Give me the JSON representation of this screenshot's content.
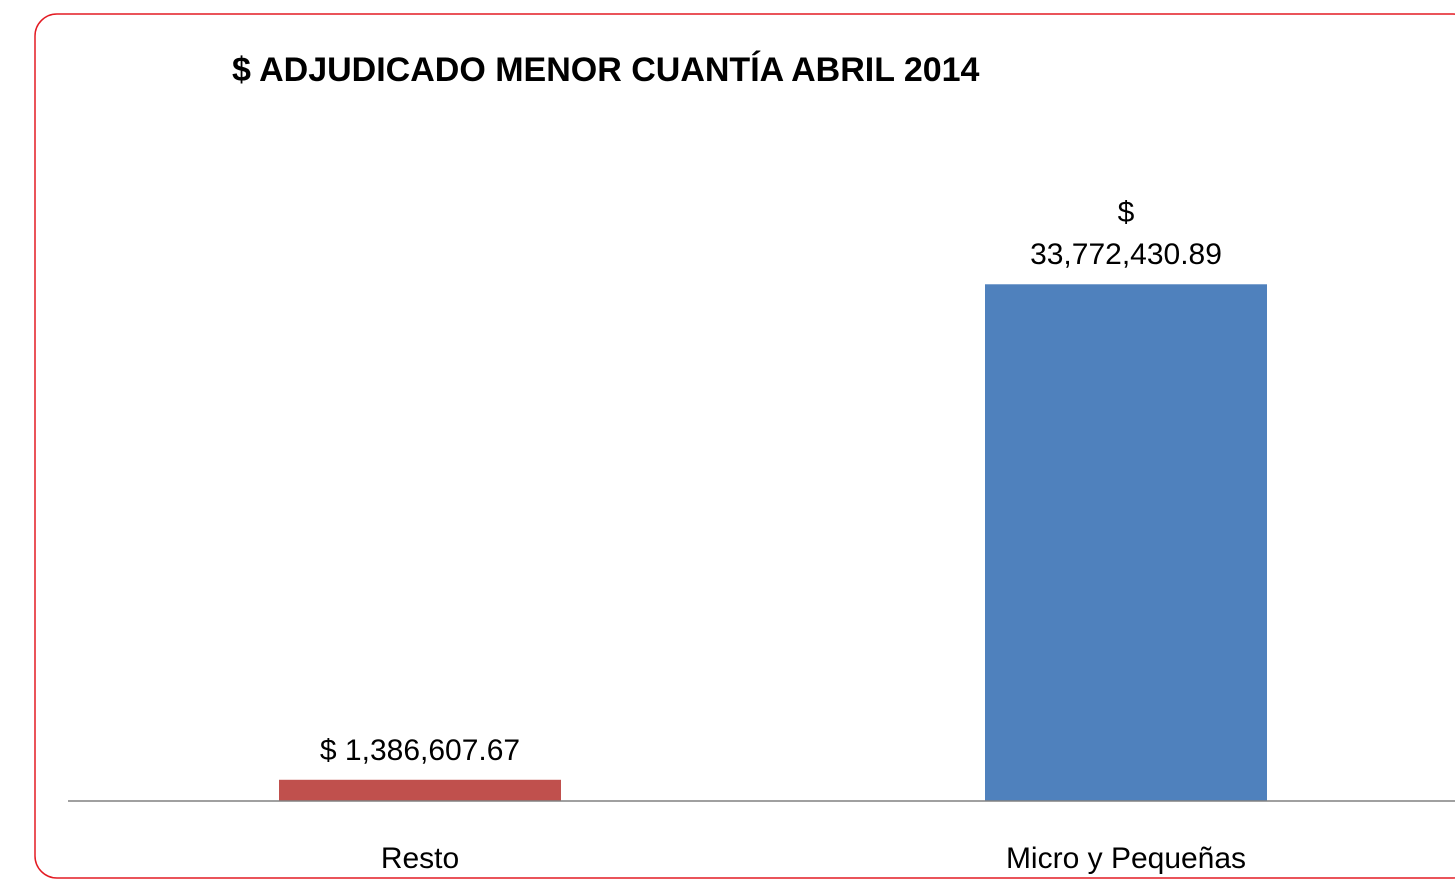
{
  "chart_data": {
    "type": "bar",
    "title": "$ ADJUDICADO MENOR CUANTÍA ABRIL 2014",
    "categories": [
      "Resto",
      "Micro y Pequeñas"
    ],
    "values": [
      1386607.67,
      33772430.89
    ],
    "value_labels": [
      "$ 1,386,607.67",
      "$ 33,772,430.89"
    ],
    "colors": [
      "#c0504d",
      "#4f81bd"
    ],
    "ylim": [
      0,
      40000000
    ]
  }
}
